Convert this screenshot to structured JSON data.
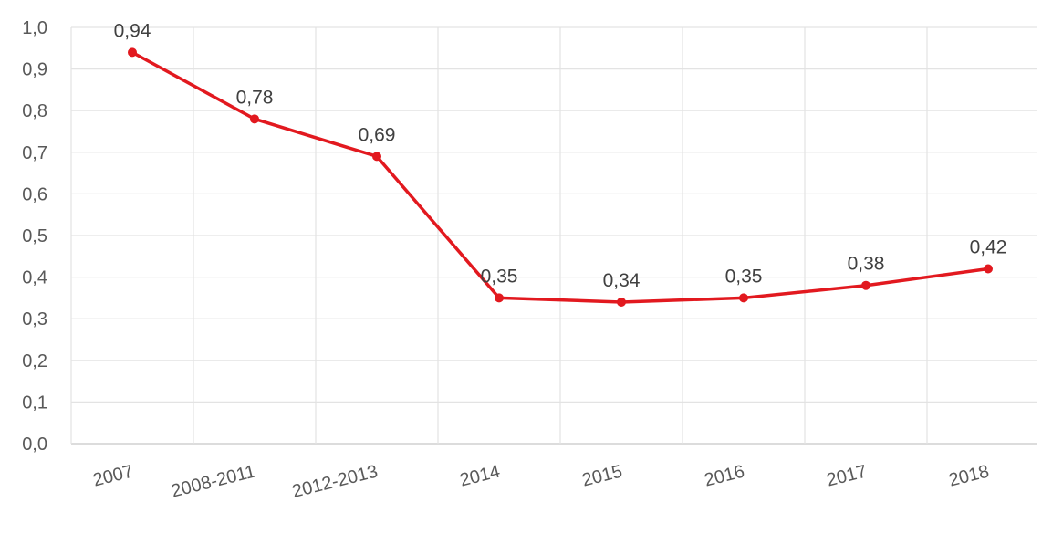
{
  "chart_data": {
    "type": "line",
    "categories": [
      "2007",
      "2008-2011",
      "2012-2013",
      "2014",
      "2015",
      "2016",
      "2017",
      "2018"
    ],
    "values": [
      0.94,
      0.78,
      0.69,
      0.35,
      0.34,
      0.35,
      0.38,
      0.42
    ],
    "data_labels": [
      "0,94",
      "0,78",
      "0,69",
      "0,35",
      "0,34",
      "0,35",
      "0,38",
      "0,42"
    ],
    "y_ticks": [
      "0,0",
      "0,1",
      "0,2",
      "0,3",
      "0,4",
      "0,5",
      "0,6",
      "0,7",
      "0,8",
      "0,9",
      "1,0"
    ],
    "ylim": [
      0,
      1.0
    ],
    "grid": true,
    "legend": "none",
    "series_color": "#e2191f",
    "grid_color": "#e3e3e3",
    "title": "",
    "xlabel": "",
    "ylabel": ""
  }
}
